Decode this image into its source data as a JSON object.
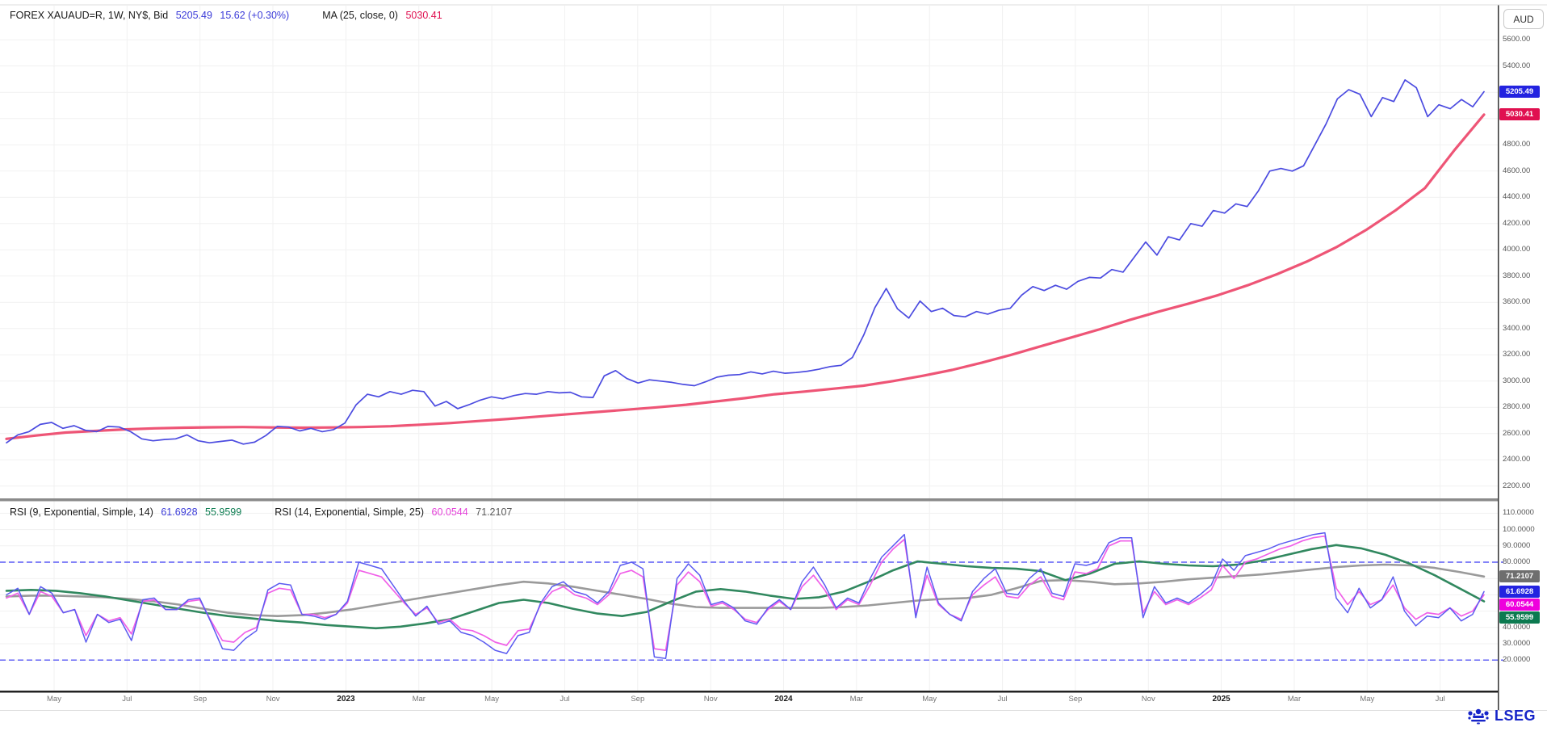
{
  "header": {
    "instrument": "FOREX XAUAUD=R, 1W, NY$, Bid",
    "last": "5205.49",
    "change": "15.62 (+0.30%)",
    "ma_label": "MA (25, close, 0)",
    "ma_value": "5030.41"
  },
  "rsi_header": {
    "rsi1_label": "RSI (9, Exponential, Simple, 14)",
    "rsi1_value": "61.6928",
    "rsi1_signal": "55.9599",
    "rsi2_label": "RSI (14, Exponential, Simple, 25)",
    "rsi2_value": "60.0544",
    "rsi2_signal": "71.2107"
  },
  "y_axis": {
    "currency": "AUD",
    "price_ticks": [
      {
        "t": "5600.00",
        "v": 5600
      },
      {
        "t": "5400.00",
        "v": 5400
      },
      {
        "t": "4800.00",
        "v": 4800
      },
      {
        "t": "4600.00",
        "v": 4600
      },
      {
        "t": "4400.00",
        "v": 4400
      },
      {
        "t": "4200.00",
        "v": 4200
      },
      {
        "t": "4000.00",
        "v": 4000
      },
      {
        "t": "3800.00",
        "v": 3800
      },
      {
        "t": "3600.00",
        "v": 3600
      },
      {
        "t": "3400.00",
        "v": 3400
      },
      {
        "t": "3200.00",
        "v": 3200
      },
      {
        "t": "3000.00",
        "v": 3000
      },
      {
        "t": "2800.00",
        "v": 2800
      },
      {
        "t": "2600.00",
        "v": 2600
      },
      {
        "t": "2400.00",
        "v": 2400
      },
      {
        "t": "2200.00",
        "v": 2200
      }
    ],
    "rsi_ticks": [
      {
        "t": "110.0000",
        "v": 110
      },
      {
        "t": "100.0000",
        "v": 100
      },
      {
        "t": "90.0000",
        "v": 90
      },
      {
        "t": "80.0000",
        "v": 80
      },
      {
        "t": "40.0000",
        "v": 40
      },
      {
        "t": "30.0000",
        "v": 30
      },
      {
        "t": "20.0000",
        "v": 20
      }
    ],
    "badges": [
      {
        "text": "5205.49",
        "value": 5205.49,
        "panel": "price",
        "color": "#2323e0"
      },
      {
        "text": "5030.41",
        "value": 5030.41,
        "panel": "price",
        "color": "#e01050"
      },
      {
        "text": "71.2107",
        "value": 71.2107,
        "panel": "rsi",
        "color": "#6e6e6e"
      },
      {
        "text": "61.6928",
        "value": 61.6928,
        "panel": "rsi",
        "color": "#2323e0"
      },
      {
        "text": "60.0544",
        "value": 60.0544,
        "panel": "rsi",
        "color": "#ee00dd"
      },
      {
        "text": "55.9599",
        "value": 55.9599,
        "panel": "rsi",
        "color": "#0c7a50"
      }
    ]
  },
  "x_axis": {
    "labels": [
      {
        "text": "May",
        "bold": false
      },
      {
        "text": "Jul",
        "bold": false
      },
      {
        "text": "Sep",
        "bold": false
      },
      {
        "text": "Nov",
        "bold": false
      },
      {
        "text": "2023",
        "bold": true
      },
      {
        "text": "Mar",
        "bold": false
      },
      {
        "text": "May",
        "bold": false
      },
      {
        "text": "Jul",
        "bold": false
      },
      {
        "text": "Sep",
        "bold": false
      },
      {
        "text": "Nov",
        "bold": false
      },
      {
        "text": "2024",
        "bold": true
      },
      {
        "text": "Mar",
        "bold": false
      },
      {
        "text": "May",
        "bold": false
      },
      {
        "text": "Jul",
        "bold": false
      },
      {
        "text": "Sep",
        "bold": false
      },
      {
        "text": "Nov",
        "bold": false
      },
      {
        "text": "2025",
        "bold": true
      },
      {
        "text": "Mar",
        "bold": false
      },
      {
        "text": "May",
        "bold": false
      },
      {
        "text": "Jul",
        "bold": false
      }
    ]
  },
  "branding": {
    "logo_text": "LSEG"
  },
  "colors": {
    "bid_line": "#4b4be0",
    "ma_line": "#ee5576",
    "rsi9": "#5b5bf0",
    "rsi14": "#f060e8",
    "rsi9_signal": "#31885f",
    "rsi14_signal": "#9a9a9a",
    "band_dashed": "#5a5af5",
    "grid": "#f1f1f1",
    "divider": "#8a8a8a"
  },
  "chart_data": [
    {
      "type": "line",
      "title": "FOREX XAUAUD=R weekly Bid with MA(25, close, 0)",
      "xlabel": "",
      "ylabel": "AUD",
      "x_range": "Apr 2022 - Aug 2025",
      "ylim": [
        2200,
        5600
      ],
      "y_tick_step": 200,
      "grid": true,
      "series": [
        {
          "name": "Bid",
          "color": "#4b4be0",
          "width": 1.7,
          "values": [
            2530,
            2590,
            2615,
            2670,
            2685,
            2640,
            2660,
            2625,
            2615,
            2655,
            2650,
            2615,
            2560,
            2545,
            2555,
            2560,
            2590,
            2545,
            2530,
            2540,
            2550,
            2520,
            2535,
            2585,
            2655,
            2650,
            2620,
            2640,
            2615,
            2630,
            2680,
            2820,
            2900,
            2880,
            2920,
            2900,
            2930,
            2920,
            2810,
            2845,
            2790,
            2820,
            2855,
            2880,
            2865,
            2890,
            2905,
            2900,
            2920,
            2910,
            2915,
            2880,
            2875,
            3040,
            3080,
            3020,
            2985,
            3010,
            3000,
            2990,
            2975,
            2965,
            2995,
            3030,
            3045,
            3050,
            3070,
            3055,
            3075,
            3060,
            3065,
            3075,
            3090,
            3110,
            3120,
            3180,
            3350,
            3560,
            3705,
            3550,
            3480,
            3610,
            3530,
            3555,
            3500,
            3490,
            3530,
            3510,
            3540,
            3555,
            3655,
            3720,
            3690,
            3730,
            3700,
            3760,
            3790,
            3785,
            3850,
            3830,
            3945,
            4060,
            3960,
            4100,
            4075,
            4200,
            4180,
            4300,
            4280,
            4350,
            4330,
            4450,
            4600,
            4620,
            4600,
            4640,
            4800,
            4960,
            5150,
            5220,
            5185,
            5015,
            5160,
            5130,
            5295,
            5235,
            5015,
            5105,
            5075,
            5145,
            5090,
            5205
          ]
        },
        {
          "name": "MA (25, close, 0)",
          "color": "#ee5576",
          "width": 3.2,
          "values": [
            2560,
            2585,
            2608,
            2620,
            2632,
            2640,
            2645,
            2648,
            2650,
            2647,
            2645,
            2647,
            2650,
            2656,
            2668,
            2680,
            2696,
            2712,
            2730,
            2748,
            2765,
            2782,
            2800,
            2820,
            2845,
            2870,
            2900,
            2920,
            2942,
            2965,
            3000,
            3040,
            3085,
            3140,
            3200,
            3265,
            3330,
            3395,
            3465,
            3530,
            3590,
            3655,
            3730,
            3815,
            3910,
            4020,
            4150,
            4300,
            4470,
            4760,
            5030
          ]
        }
      ],
      "last_values": {
        "Bid": 5205.49,
        "MA": 5030.41
      }
    },
    {
      "type": "line",
      "title": "RSI (9, Exponential, Simple, 14) and RSI (14, Exponential, Simple, 25)",
      "ylim": [
        8,
        112
      ],
      "y_tick_step": 10,
      "grid": true,
      "bands": [
        80,
        20
      ],
      "series": [
        {
          "name": "RSI 9",
          "color": "#5b5bf0",
          "width": 1.5,
          "values": [
            60,
            64,
            48,
            65,
            61,
            49,
            51,
            31,
            48,
            43,
            45,
            32,
            57,
            58,
            51,
            51,
            57,
            58,
            43,
            27,
            26,
            33,
            38,
            63,
            67,
            66,
            48,
            47,
            45,
            48,
            56,
            80,
            78,
            76,
            66,
            56,
            47,
            53,
            42,
            44,
            37,
            35,
            31,
            26,
            24,
            35,
            37,
            55,
            65,
            68,
            62,
            60,
            55,
            62,
            78,
            80,
            76,
            22,
            21,
            70,
            79,
            72,
            54,
            56,
            52,
            44,
            42,
            52,
            57,
            51,
            68,
            77,
            66,
            52,
            58,
            55,
            70,
            83,
            90,
            97,
            46,
            77,
            55,
            48,
            44,
            62,
            70,
            76,
            61,
            60,
            70,
            76,
            61,
            59,
            79,
            78,
            80,
            92,
            95,
            95,
            46,
            65,
            55,
            58,
            55,
            60,
            66,
            82,
            75,
            84,
            86,
            88,
            91,
            93,
            95,
            97,
            98,
            58,
            49,
            64,
            52,
            57,
            71,
            50,
            41,
            47,
            46,
            52,
            44,
            48,
            62
          ]
        },
        {
          "name": "RSI 14",
          "color": "#f060e8",
          "width": 1.7,
          "values": [
            58,
            61,
            48,
            62,
            59,
            49,
            51,
            35,
            48,
            44,
            46,
            36,
            56,
            57,
            51,
            51,
            56,
            57,
            44,
            32,
            31,
            37,
            40,
            61,
            64,
            63,
            48,
            48,
            46,
            48,
            55,
            75,
            73,
            71,
            63,
            55,
            48,
            52,
            43,
            45,
            39,
            38,
            35,
            31,
            29,
            38,
            39,
            54,
            62,
            65,
            60,
            58,
            54,
            60,
            73,
            75,
            71,
            27,
            26,
            66,
            74,
            68,
            53,
            55,
            51,
            45,
            43,
            51,
            56,
            51,
            65,
            72,
            63,
            51,
            57,
            54,
            66,
            80,
            88,
            94,
            48,
            72,
            54,
            48,
            45,
            60,
            66,
            71,
            59,
            58,
            66,
            71,
            59,
            57,
            74,
            73,
            76,
            90,
            93,
            93,
            49,
            62,
            54,
            57,
            54,
            58,
            63,
            78,
            70,
            80,
            82,
            85,
            88,
            90,
            93,
            95,
            96,
            64,
            54,
            62,
            54,
            57,
            66,
            52,
            45,
            49,
            48,
            52,
            47,
            50,
            60
          ]
        },
        {
          "name": "RSI 9 signal (Simple 14)",
          "color": "#31885f",
          "width": 2.6,
          "values": [
            62.5,
            63,
            62.5,
            61,
            59,
            56.5,
            54,
            51.5,
            49,
            47,
            45.5,
            44,
            43,
            41.5,
            40.5,
            39.5,
            40.5,
            42.5,
            45,
            50,
            55,
            57,
            55,
            51.5,
            48.5,
            47,
            49.5,
            56,
            62,
            63.5,
            62,
            59.5,
            57.5,
            58.5,
            62,
            68,
            75,
            80.5,
            79,
            77.5,
            76.5,
            76,
            74.5,
            69,
            73,
            79,
            80.5,
            79,
            78,
            77.5,
            78.5,
            81,
            84.5,
            88,
            90.5,
            88.5,
            84.5,
            79,
            72,
            64,
            56
          ]
        },
        {
          "name": "RSI 14 signal (Simple 25)",
          "color": "#9a9a9a",
          "width": 2.6,
          "values": [
            59,
            59.5,
            59.5,
            59,
            58.5,
            57.5,
            56,
            54,
            51.5,
            49,
            47.5,
            47,
            47.5,
            49,
            51,
            53.5,
            56,
            58.5,
            61,
            63.5,
            66,
            68,
            67,
            65,
            62.5,
            60,
            57.5,
            54.5,
            52.5,
            52,
            52,
            52,
            52,
            52,
            52.5,
            53.5,
            55,
            56.5,
            57.5,
            58,
            60,
            64,
            68.5,
            69,
            68,
            66.5,
            67,
            68,
            69.5,
            70.5,
            71.5,
            72.5,
            74,
            75.5,
            77,
            78,
            78.5,
            78,
            76.5,
            74,
            71.2
          ]
        }
      ],
      "last_values": {
        "RSI9": 61.6928,
        "RSI9_signal": 55.9599,
        "RSI14": 60.0544,
        "RSI14_signal": 71.2107
      }
    }
  ]
}
